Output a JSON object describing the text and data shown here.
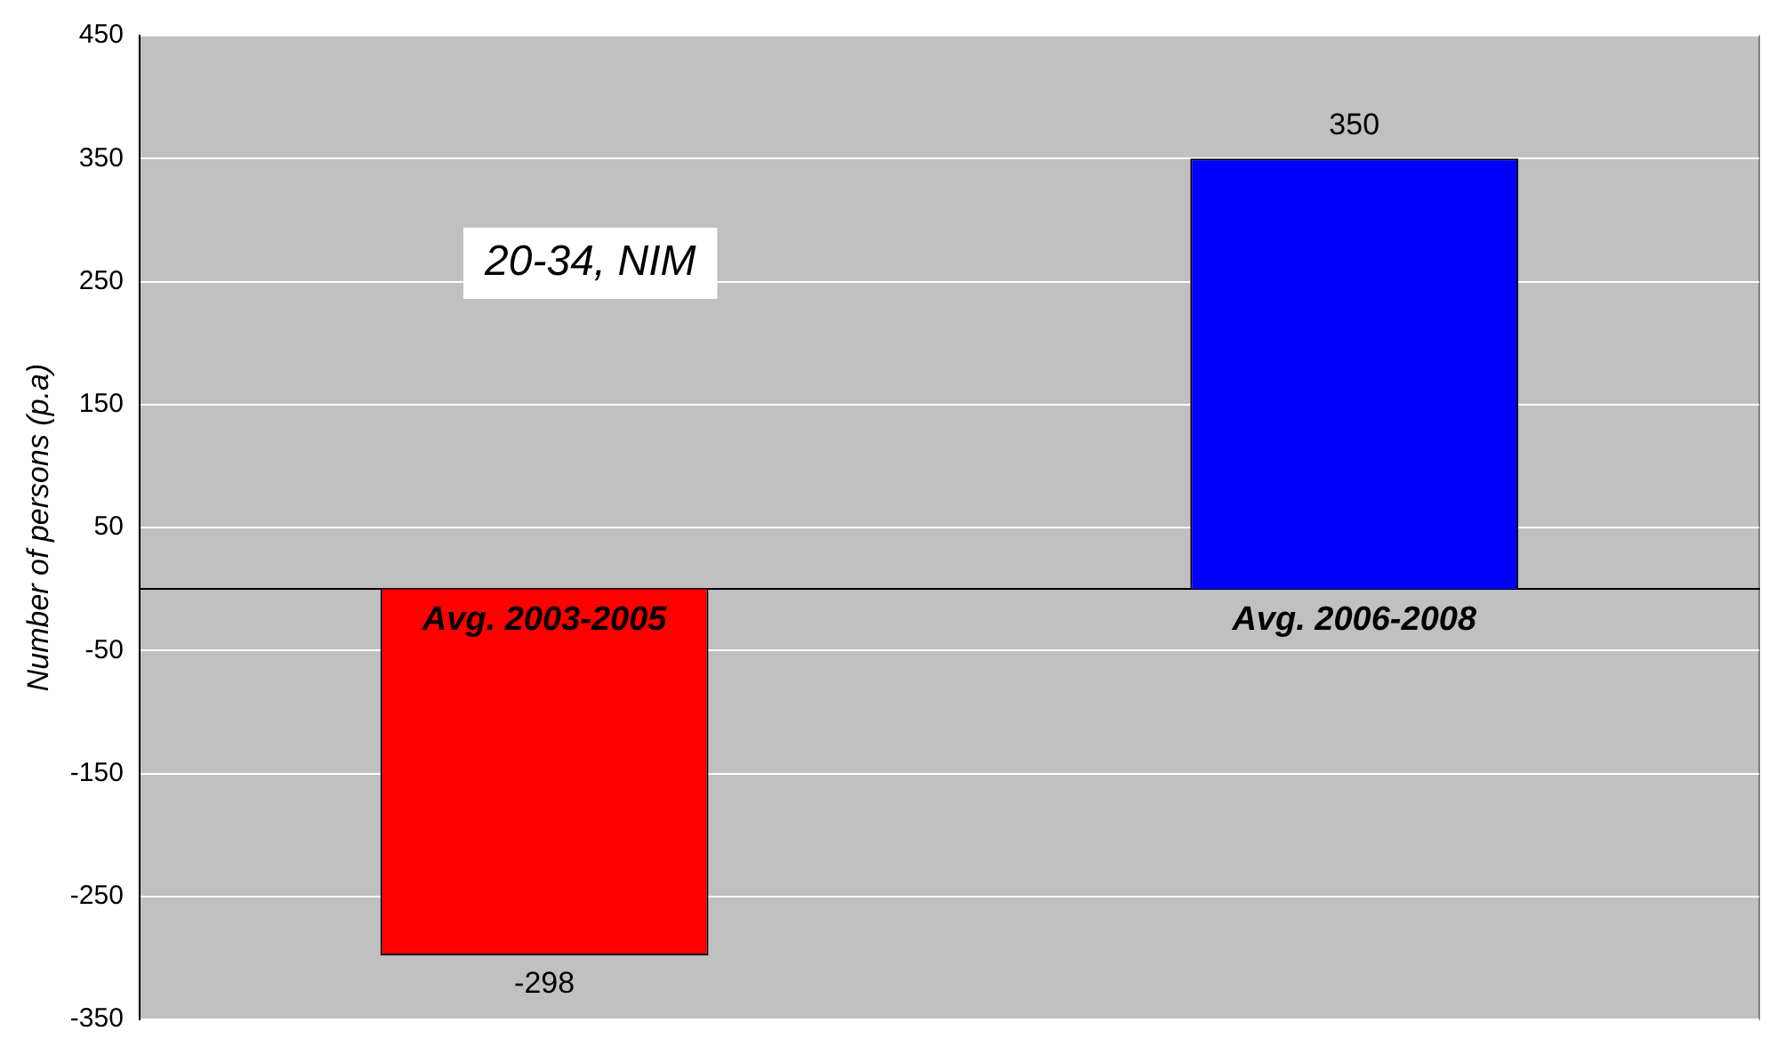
{
  "chart_data": {
    "type": "bar",
    "ylabel": "Number of persons (p.a)",
    "categories": [
      "Avg. 2003-2005",
      "Avg. 2006-2008"
    ],
    "values": [
      -298,
      350
    ],
    "colors": [
      "#ff0000",
      "#0000ff"
    ],
    "ylim": [
      -350,
      450
    ],
    "yticks": [
      -350,
      -250,
      -150,
      -50,
      50,
      150,
      250,
      350,
      450
    ],
    "grid": "y",
    "data_labels": true,
    "annotations": [
      "20-34, NIM"
    ]
  }
}
